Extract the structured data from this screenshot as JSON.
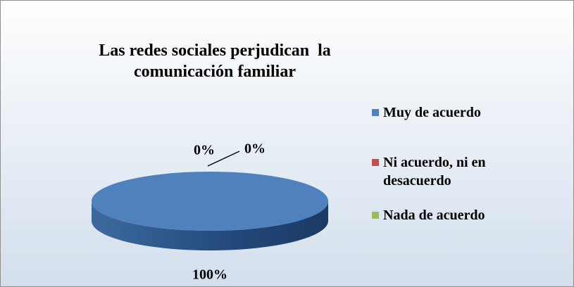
{
  "chart_data": {
    "type": "pie",
    "title": "Las redes sociales perjudican  la comunicación familiar",
    "categories": [
      "Muy de acuerdo",
      "Ni acuerdo, ni en desacuerdo",
      "Nada de acuerdo"
    ],
    "values": [
      100,
      0,
      0
    ],
    "value_labels": [
      "100%",
      "0%",
      "0%"
    ],
    "colors": [
      "#4f81bd",
      "#c0504d",
      "#9bbb59"
    ],
    "legend": "right"
  }
}
